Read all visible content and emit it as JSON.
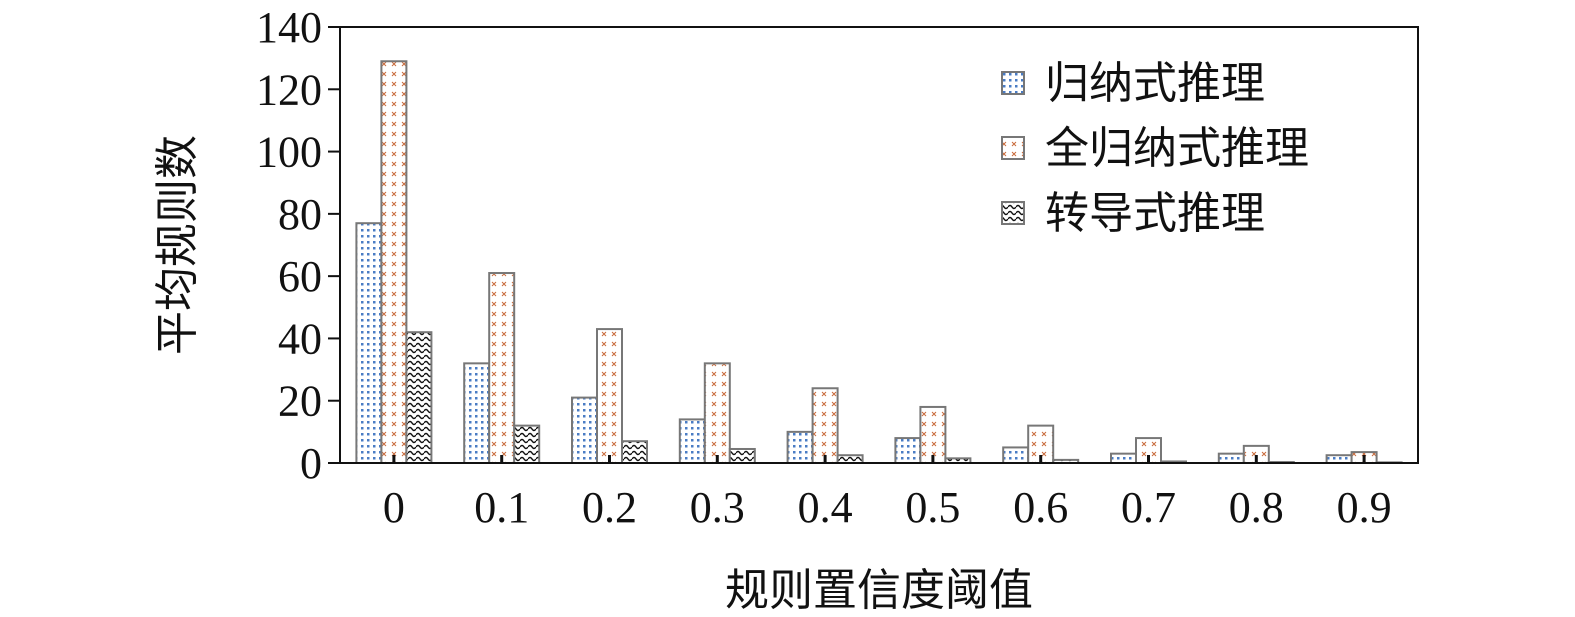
{
  "chart_data": {
    "type": "bar",
    "xlabel": "规则置信度阈值",
    "ylabel": "平均规则数",
    "categories": [
      "0",
      "0.1",
      "0.2",
      "0.3",
      "0.4",
      "0.5",
      "0.6",
      "0.7",
      "0.8",
      "0.9"
    ],
    "ylim": [
      0,
      140
    ],
    "yticks": [
      "0",
      "20",
      "40",
      "60",
      "80",
      "100",
      "120",
      "140"
    ],
    "legend_position": "top-right",
    "grid": false,
    "series": [
      {
        "name": "归纳式推理",
        "color": "#4a7cc4",
        "pattern": "dots",
        "values": [
          77,
          32,
          21,
          14,
          10,
          8,
          5,
          3,
          3,
          2.5
        ]
      },
      {
        "name": "全归纳式推理",
        "color": "#c96a3a",
        "pattern": "crosses",
        "values": [
          129,
          61,
          43,
          32,
          24,
          18,
          12,
          8,
          5.5,
          3.5
        ]
      },
      {
        "name": "转导式推理",
        "color": "#222222",
        "pattern": "waves",
        "values": [
          42,
          12,
          7,
          4.5,
          2.5,
          1.5,
          1,
          0.5,
          0.3,
          0.2
        ]
      }
    ]
  }
}
